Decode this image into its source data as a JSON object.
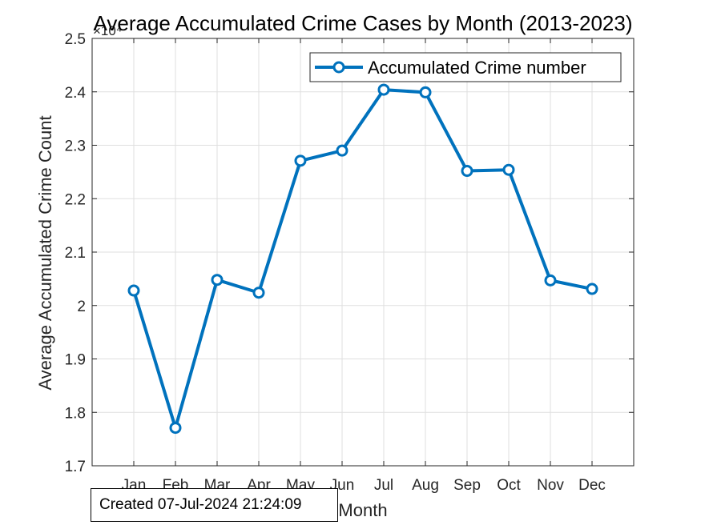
{
  "chart_data": {
    "type": "line",
    "title": "Average Accumulated Crime Cases by Month (2013-2023)",
    "xlabel": "Month",
    "ylabel": "Average Accumulated Crime Count",
    "y_multiplier_label": "×10⁴",
    "categories": [
      "Jan",
      "Feb",
      "Mar",
      "Apr",
      "May",
      "Jun",
      "Jul",
      "Aug",
      "Sep",
      "Oct",
      "Nov",
      "Dec"
    ],
    "series": [
      {
        "name": "Accumulated Crime number",
        "values": [
          2.028,
          1.771,
          2.048,
          2.024,
          2.271,
          2.29,
          2.404,
          2.399,
          2.252,
          2.254,
          2.047,
          2.031
        ],
        "color": "#0072BD"
      }
    ],
    "ylim": [
      1.7,
      2.5
    ],
    "yticks": [
      "1.7",
      "1.8",
      "1.9",
      "2",
      "2.1",
      "2.2",
      "2.3",
      "2.4",
      "2.5"
    ],
    "grid": true,
    "legend_position": "top-right"
  },
  "annotation": {
    "created_text": "Created 07-Jul-2024 21:24:09"
  }
}
